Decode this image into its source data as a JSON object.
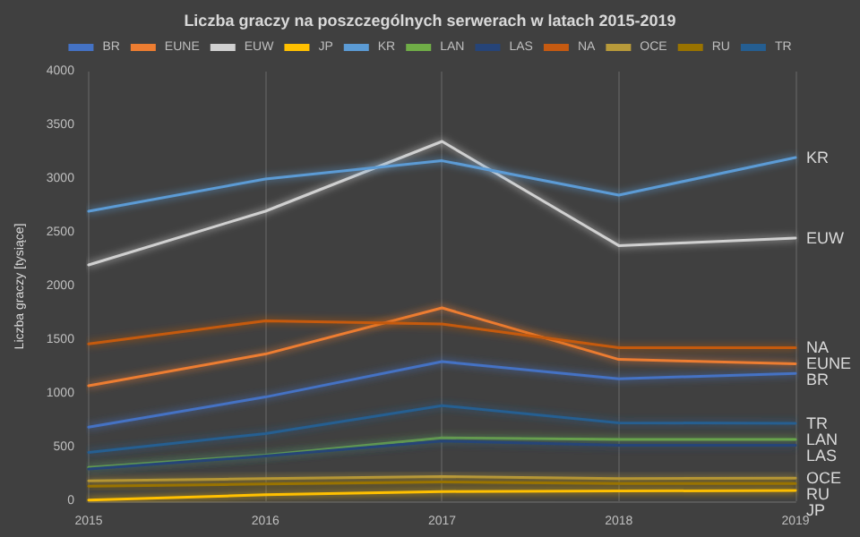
{
  "chart_data": {
    "type": "line",
    "title": "Liczba graczy na poszczególnych serwerach w latach 2015-2019",
    "ylabel": "Liczba graczy [tysiące]",
    "categories": [
      "2015",
      "2016",
      "2017",
      "2018",
      "2019"
    ],
    "series": [
      {
        "name": "BR",
        "color": "#4472c4",
        "values": [
          690,
          970,
          1300,
          1140,
          1190
        ]
      },
      {
        "name": "EUNE",
        "color": "#ed7d31",
        "values": [
          1075,
          1370,
          1800,
          1320,
          1280
        ]
      },
      {
        "name": "EUW",
        "color": "#d0d0d0",
        "values": [
          2200,
          2700,
          3350,
          2380,
          2450
        ]
      },
      {
        "name": "JP",
        "color": "#ffc000",
        "values": [
          10,
          60,
          90,
          95,
          100
        ]
      },
      {
        "name": "KR",
        "color": "#5b9bd5",
        "values": [
          2700,
          3000,
          3170,
          2850,
          3200
        ]
      },
      {
        "name": "LAN",
        "color": "#70ad47",
        "values": [
          315,
          430,
          590,
          575,
          575
        ]
      },
      {
        "name": "LAS",
        "color": "#264478",
        "values": [
          300,
          420,
          560,
          520,
          520
        ]
      },
      {
        "name": "NA",
        "color": "#c55a11",
        "values": [
          1465,
          1680,
          1650,
          1430,
          1430
        ]
      },
      {
        "name": "OCE",
        "color": "#b89a3a",
        "values": [
          190,
          210,
          230,
          210,
          215
        ]
      },
      {
        "name": "RU",
        "color": "#997300",
        "values": [
          140,
          160,
          180,
          165,
          165
        ]
      },
      {
        "name": "TR",
        "color": "#255e91",
        "values": [
          455,
          630,
          890,
          730,
          725
        ]
      }
    ],
    "ylim": [
      0,
      4000
    ],
    "yticks": [
      0,
      500,
      1000,
      1500,
      2000,
      2500,
      3000,
      3500,
      4000
    ],
    "grid": "x",
    "legend": "top",
    "marker": "none",
    "line_style": "solid"
  }
}
